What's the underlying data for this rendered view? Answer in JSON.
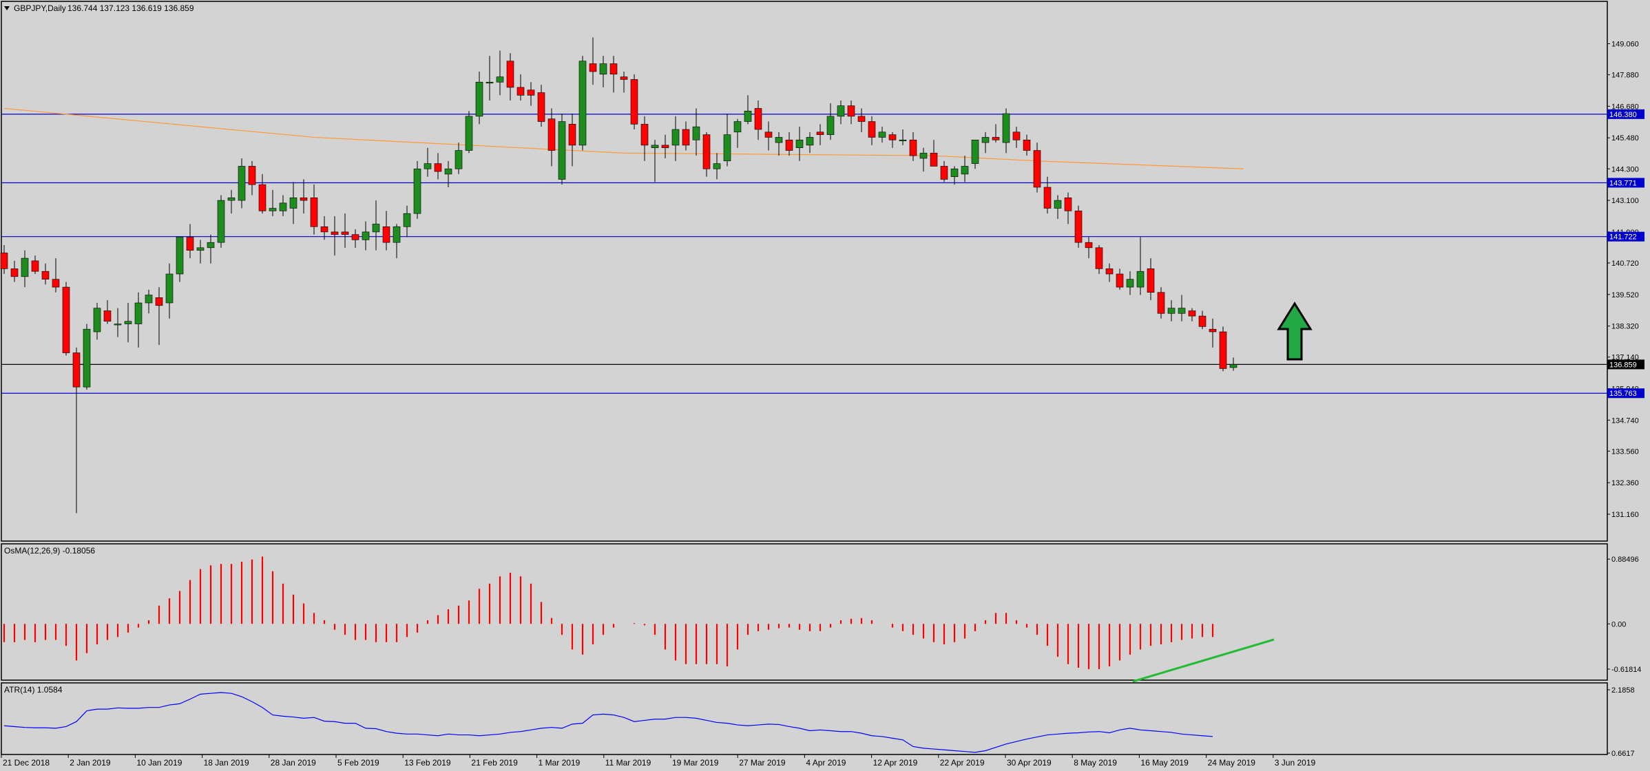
{
  "main": {
    "header": {
      "symbol_label": "GBPJPY,Daily",
      "ohlc_label": "136.744 137.123 136.619 136.859"
    },
    "price_ticks": [
      "149.060",
      "147.880",
      "146.680",
      "145.480",
      "144.300",
      "143.100",
      "141.900",
      "140.720",
      "139.520",
      "138.320",
      "137.140",
      "135.940",
      "134.740",
      "133.560",
      "132.360",
      "131.160"
    ],
    "levels": [
      {
        "value": 146.38,
        "label": "146.380",
        "color": "#0000cd",
        "tag_bg": "#0000cd"
      },
      {
        "value": 143.771,
        "label": "143.771",
        "color": "#0000cd",
        "tag_bg": "#0000cd"
      },
      {
        "value": 141.722,
        "label": "141.722",
        "color": "#0000cd",
        "tag_bg": "#0000cd"
      },
      {
        "value": 136.859,
        "label": "136.859",
        "color": "#000000",
        "tag_bg": "#000000"
      },
      {
        "value": 135.763,
        "label": "135.763",
        "color": "#0000cd",
        "tag_bg": "#0000cd"
      }
    ],
    "up_arrow_icon": "up-arrow-icon"
  },
  "osma": {
    "label": "OsMA(12,26,9) -0.18056",
    "ticks": [
      "0.88496",
      "0.00",
      "-0.61814"
    ]
  },
  "atr": {
    "label": "ATR(14) 1.0584",
    "ticks": [
      "2.1858",
      "0.6617"
    ]
  },
  "x_axis": {
    "labels": [
      "21 Dec 2018",
      "2 Jan 2019",
      "10 Jan 2019",
      "18 Jan 2019",
      "28 Jan 2019",
      "5 Feb 2019",
      "13 Feb 2019",
      "21 Feb 2019",
      "1 Mar 2019",
      "11 Mar 2019",
      "19 Mar 2019",
      "27 Mar 2019",
      "4 Apr 2019",
      "12 Apr 2019",
      "22 Apr 2019",
      "30 Apr 2019",
      "8 May 2019",
      "16 May 2019",
      "24 May 2019",
      "3 Jun 2019"
    ]
  },
  "colors": {
    "background": "#d3d3d3",
    "bull": "#1e8c1e",
    "bear": "#ff0000",
    "ma": "#ff9933",
    "osma": "#ff0000",
    "atr": "#0000ff",
    "trendline": "#22bb33",
    "arrow": "#22a845"
  },
  "chart_data": [
    {
      "type": "candlestick",
      "title": "GBPJPY,Daily",
      "ylim": [
        130.4,
        150.2
      ],
      "grid": false,
      "candles": [
        [
          141.1,
          141.4,
          140.3,
          140.5
        ],
        [
          140.5,
          140.8,
          140.0,
          140.2
        ],
        [
          140.2,
          141.2,
          139.8,
          140.9
        ],
        [
          140.8,
          141.0,
          140.3,
          140.4
        ],
        [
          140.4,
          140.7,
          139.9,
          140.1
        ],
        [
          140.1,
          140.9,
          139.6,
          139.8
        ],
        [
          139.8,
          140.0,
          137.2,
          137.3
        ],
        [
          137.3,
          137.5,
          131.2,
          136.0
        ],
        [
          136.0,
          138.4,
          135.9,
          138.2
        ],
        [
          138.1,
          139.2,
          137.8,
          139.0
        ],
        [
          138.9,
          139.3,
          138.4,
          138.5
        ],
        [
          138.4,
          139.0,
          137.9,
          138.4
        ],
        [
          138.4,
          139.2,
          137.7,
          138.5
        ],
        [
          138.4,
          139.6,
          137.5,
          139.2
        ],
        [
          139.2,
          139.7,
          138.8,
          139.5
        ],
        [
          139.4,
          139.8,
          137.6,
          139.1
        ],
        [
          139.2,
          140.7,
          138.6,
          140.3
        ],
        [
          140.3,
          141.7,
          140.0,
          141.7
        ],
        [
          141.7,
          142.2,
          140.9,
          141.2
        ],
        [
          141.2,
          141.6,
          140.7,
          141.3
        ],
        [
          141.3,
          141.8,
          140.7,
          141.5
        ],
        [
          141.5,
          143.3,
          141.3,
          143.1
        ],
        [
          143.1,
          143.5,
          142.6,
          143.2
        ],
        [
          143.1,
          144.7,
          142.8,
          144.4
        ],
        [
          144.4,
          144.6,
          143.3,
          143.7
        ],
        [
          143.7,
          144.1,
          142.6,
          142.7
        ],
        [
          142.7,
          143.5,
          142.5,
          142.8
        ],
        [
          142.7,
          143.3,
          142.5,
          143.0
        ],
        [
          142.8,
          143.8,
          142.2,
          143.2
        ],
        [
          143.2,
          143.9,
          142.6,
          143.1
        ],
        [
          143.2,
          143.7,
          141.8,
          142.1
        ],
        [
          142.1,
          142.5,
          141.6,
          141.9
        ],
        [
          141.9,
          142.5,
          141.0,
          141.8
        ],
        [
          141.9,
          142.6,
          141.3,
          141.8
        ],
        [
          141.8,
          142.0,
          141.3,
          141.6
        ],
        [
          141.6,
          142.3,
          141.2,
          141.9
        ],
        [
          141.9,
          143.1,
          141.2,
          142.2
        ],
        [
          142.1,
          142.7,
          141.2,
          141.5
        ],
        [
          141.5,
          142.2,
          140.9,
          142.1
        ],
        [
          142.1,
          142.9,
          141.7,
          142.6
        ],
        [
          142.6,
          144.6,
          142.4,
          144.3
        ],
        [
          144.3,
          145.1,
          144.0,
          144.5
        ],
        [
          144.5,
          144.9,
          143.9,
          144.2
        ],
        [
          144.1,
          144.6,
          143.6,
          144.3
        ],
        [
          144.3,
          145.3,
          144.1,
          145.0
        ],
        [
          145.0,
          146.5,
          144.9,
          146.3
        ],
        [
          146.3,
          148.0,
          146.0,
          147.6
        ],
        [
          147.6,
          148.6,
          146.9,
          147.6
        ],
        [
          147.6,
          148.8,
          147.1,
          147.8
        ],
        [
          148.4,
          148.7,
          146.9,
          147.4
        ],
        [
          147.4,
          147.9,
          146.9,
          147.1
        ],
        [
          147.3,
          147.6,
          146.7,
          147.1
        ],
        [
          147.2,
          147.5,
          145.9,
          146.1
        ],
        [
          146.2,
          146.6,
          144.4,
          145.0
        ],
        [
          143.9,
          146.4,
          143.7,
          146.1
        ],
        [
          146.0,
          146.4,
          144.4,
          145.2
        ],
        [
          145.2,
          148.6,
          145.0,
          148.4
        ],
        [
          148.3,
          149.3,
          147.5,
          148.0
        ],
        [
          147.9,
          148.6,
          147.4,
          148.3
        ],
        [
          148.3,
          148.6,
          147.2,
          147.9
        ],
        [
          147.8,
          148.0,
          147.2,
          147.7
        ],
        [
          147.7,
          147.9,
          145.8,
          146.0
        ],
        [
          146.0,
          146.3,
          144.6,
          145.2
        ],
        [
          145.1,
          145.4,
          143.8,
          145.2
        ],
        [
          145.2,
          145.6,
          144.7,
          145.1
        ],
        [
          145.2,
          146.3,
          144.6,
          145.8
        ],
        [
          145.8,
          146.1,
          145.0,
          145.2
        ],
        [
          145.4,
          146.6,
          144.8,
          145.9
        ],
        [
          145.6,
          145.7,
          144.0,
          144.3
        ],
        [
          144.3,
          144.9,
          143.9,
          144.5
        ],
        [
          144.6,
          146.4,
          144.4,
          145.6
        ],
        [
          145.7,
          146.2,
          145.1,
          146.1
        ],
        [
          146.1,
          147.1,
          146.0,
          146.5
        ],
        [
          146.6,
          146.9,
          145.4,
          145.8
        ],
        [
          145.7,
          146.1,
          145.0,
          145.5
        ],
        [
          145.3,
          145.7,
          144.8,
          145.5
        ],
        [
          145.4,
          145.7,
          144.8,
          145.0
        ],
        [
          145.1,
          145.9,
          144.6,
          145.4
        ],
        [
          145.2,
          145.7,
          144.9,
          145.5
        ],
        [
          145.7,
          146.0,
          145.2,
          145.6
        ],
        [
          145.6,
          146.8,
          145.4,
          146.3
        ],
        [
          146.3,
          146.9,
          146.0,
          146.7
        ],
        [
          146.7,
          146.9,
          146.0,
          146.3
        ],
        [
          146.3,
          146.6,
          145.7,
          146.1
        ],
        [
          146.1,
          146.3,
          145.2,
          145.5
        ],
        [
          145.5,
          145.9,
          145.3,
          145.7
        ],
        [
          145.6,
          145.7,
          145.1,
          145.4
        ],
        [
          145.4,
          145.8,
          145.2,
          145.4
        ],
        [
          145.4,
          145.7,
          144.6,
          144.8
        ],
        [
          144.7,
          145.1,
          144.2,
          144.9
        ],
        [
          144.9,
          145.4,
          144.4,
          144.4
        ],
        [
          144.4,
          144.6,
          143.8,
          143.9
        ],
        [
          144.0,
          144.4,
          143.7,
          144.3
        ],
        [
          144.1,
          144.8,
          143.8,
          144.4
        ],
        [
          144.5,
          145.4,
          144.3,
          145.4
        ],
        [
          145.3,
          145.7,
          144.9,
          145.5
        ],
        [
          145.5,
          146.0,
          145.3,
          145.4
        ],
        [
          145.3,
          146.6,
          144.9,
          146.4
        ],
        [
          145.7,
          145.9,
          145.1,
          145.4
        ],
        [
          145.4,
          145.6,
          144.8,
          145.0
        ],
        [
          145.0,
          145.3,
          143.4,
          143.6
        ],
        [
          143.6,
          144.0,
          142.6,
          142.8
        ],
        [
          142.8,
          143.3,
          142.4,
          143.1
        ],
        [
          143.2,
          143.4,
          142.2,
          142.7
        ],
        [
          142.7,
          142.9,
          141.3,
          141.5
        ],
        [
          141.5,
          141.7,
          140.9,
          141.3
        ],
        [
          141.3,
          141.4,
          140.3,
          140.5
        ],
        [
          140.5,
          140.7,
          140.0,
          140.3
        ],
        [
          140.3,
          140.5,
          139.7,
          139.8
        ],
        [
          139.8,
          140.4,
          139.5,
          140.1
        ],
        [
          139.8,
          141.7,
          139.5,
          140.4
        ],
        [
          140.5,
          140.9,
          139.3,
          139.6
        ],
        [
          139.6,
          139.8,
          138.6,
          138.8
        ],
        [
          138.8,
          139.3,
          138.5,
          139.0
        ],
        [
          138.8,
          139.5,
          138.5,
          139.0
        ],
        [
          138.9,
          139.0,
          138.5,
          138.7
        ],
        [
          138.7,
          138.9,
          138.2,
          138.3
        ],
        [
          138.2,
          138.6,
          137.5,
          138.1
        ],
        [
          138.1,
          138.3,
          136.6,
          136.7
        ],
        [
          136.74,
          137.12,
          136.62,
          136.86
        ]
      ],
      "moving_average": [
        [
          0,
          146.6
        ],
        [
          30,
          145.5
        ],
        [
          60,
          144.9
        ],
        [
          90,
          144.8
        ],
        [
          100,
          144.6
        ],
        [
          120,
          144.3
        ]
      ]
    },
    {
      "type": "bar",
      "title": "OsMA(12,26,9) -0.18056",
      "ylim": [
        -0.75,
        1.0
      ],
      "values": [
        -0.25,
        -0.25,
        -0.22,
        -0.25,
        -0.22,
        -0.22,
        -0.3,
        -0.5,
        -0.4,
        -0.28,
        -0.22,
        -0.18,
        -0.12,
        -0.05,
        0.05,
        0.25,
        0.35,
        0.45,
        0.6,
        0.75,
        0.8,
        0.82,
        0.82,
        0.85,
        0.88,
        0.92,
        0.72,
        0.55,
        0.4,
        0.28,
        0.15,
        0.05,
        -0.08,
        -0.15,
        -0.22,
        -0.22,
        -0.25,
        -0.25,
        -0.25,
        -0.18,
        -0.12,
        0.05,
        0.12,
        0.2,
        0.25,
        0.32,
        0.48,
        0.55,
        0.65,
        0.7,
        0.65,
        0.55,
        0.3,
        0.08,
        -0.15,
        -0.35,
        -0.42,
        -0.28,
        -0.15,
        -0.05,
        0.0,
        0.01,
        -0.02,
        -0.15,
        -0.35,
        -0.5,
        -0.55,
        -0.55,
        -0.55,
        -0.55,
        -0.58,
        -0.35,
        -0.15,
        -0.1,
        -0.08,
        -0.06,
        -0.05,
        -0.08,
        -0.1,
        -0.1,
        -0.05,
        0.05,
        0.07,
        0.08,
        0.05,
        0.0,
        -0.05,
        -0.1,
        -0.15,
        -0.2,
        -0.25,
        -0.28,
        -0.25,
        -0.2,
        -0.1,
        0.05,
        0.15,
        0.15,
        0.05,
        -0.05,
        -0.15,
        -0.3,
        -0.45,
        -0.55,
        -0.6,
        -0.62,
        -0.62,
        -0.58,
        -0.5,
        -0.42,
        -0.35,
        -0.3,
        -0.28,
        -0.25,
        -0.22,
        -0.2,
        -0.18,
        -0.18
      ]
    },
    {
      "type": "line",
      "title": "ATR(14) 1.0584",
      "ylim": [
        0.6617,
        2.1858
      ],
      "values": [
        1.32,
        1.3,
        1.28,
        1.27,
        1.27,
        1.26,
        1.3,
        1.42,
        1.68,
        1.72,
        1.72,
        1.75,
        1.74,
        1.74,
        1.76,
        1.76,
        1.82,
        1.85,
        1.96,
        2.08,
        2.1,
        2.12,
        2.1,
        2.02,
        1.9,
        1.76,
        1.58,
        1.55,
        1.53,
        1.5,
        1.52,
        1.43,
        1.42,
        1.38,
        1.38,
        1.26,
        1.25,
        1.18,
        1.14,
        1.12,
        1.12,
        1.1,
        1.08,
        1.12,
        1.1,
        1.1,
        1.08,
        1.1,
        1.12,
        1.16,
        1.18,
        1.22,
        1.26,
        1.28,
        1.26,
        1.36,
        1.38,
        1.58,
        1.6,
        1.58,
        1.52,
        1.42,
        1.45,
        1.48,
        1.48,
        1.52,
        1.52,
        1.5,
        1.45,
        1.4,
        1.38,
        1.34,
        1.32,
        1.34,
        1.36,
        1.35,
        1.3,
        1.26,
        1.2,
        1.22,
        1.2,
        1.18,
        1.18,
        1.14,
        1.08,
        1.06,
        1.02,
        0.98,
        0.82,
        0.78,
        0.76,
        0.74,
        0.72,
        0.7,
        0.68,
        0.72,
        0.8,
        0.88,
        0.94,
        1.0,
        1.05,
        1.1,
        1.12,
        1.14,
        1.15,
        1.17,
        1.18,
        1.15,
        1.22,
        1.26,
        1.22,
        1.2,
        1.18,
        1.16,
        1.12,
        1.1,
        1.08,
        1.06
      ]
    }
  ]
}
